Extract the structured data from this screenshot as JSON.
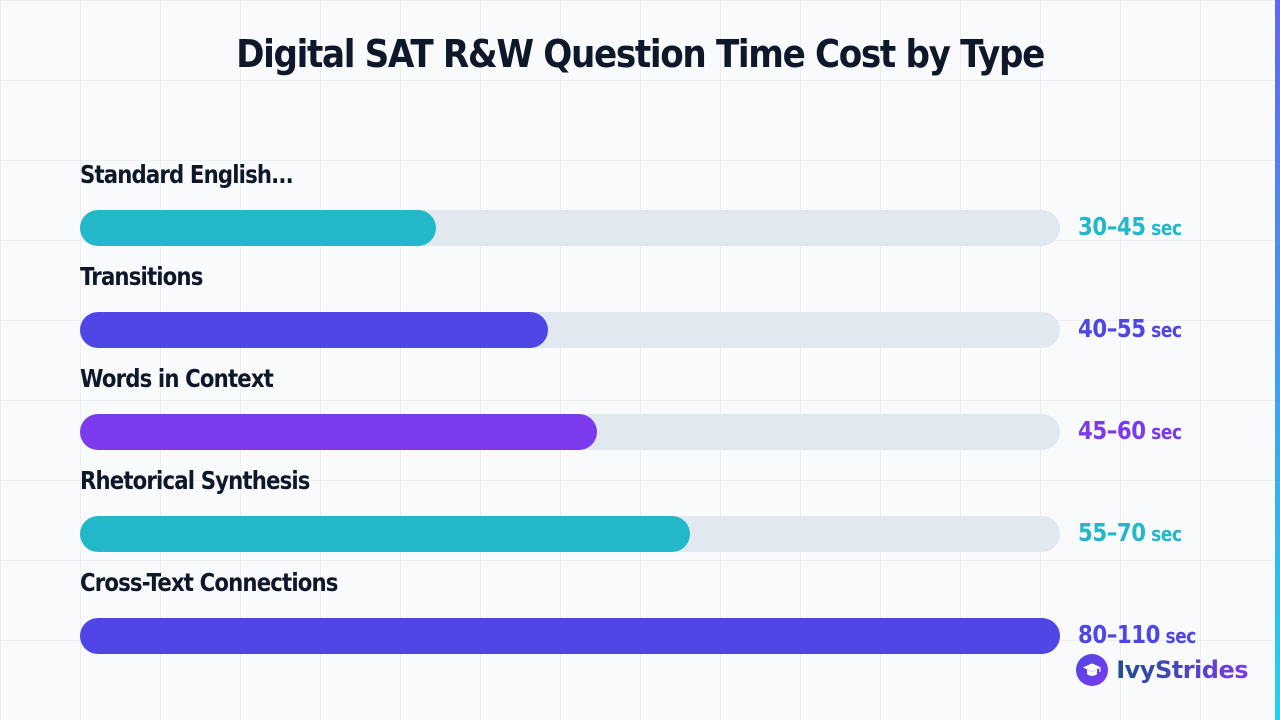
{
  "chart_data": {
    "type": "bar",
    "orientation": "horizontal",
    "title": "Digital SAT R&W Question Time Cost by Type",
    "categories": [
      "Standard English...",
      "Transitions",
      "Words in Context",
      "Rhetorical Synthesis",
      "Cross-Text Connections"
    ],
    "values": [
      40,
      52.5,
      58,
      68.5,
      110
    ],
    "xlim": [
      0,
      110
    ],
    "value_labels": [
      {
        "range": "30–45",
        "unit": "sec"
      },
      {
        "range": "40–55",
        "unit": "sec"
      },
      {
        "range": "45–60",
        "unit": "sec"
      },
      {
        "range": "55–70",
        "unit": "sec"
      },
      {
        "range": "80–110",
        "unit": "sec"
      }
    ],
    "colors": [
      "#22b8c9",
      "#4f46e5",
      "#7c3aed",
      "#22b8c9",
      "#4f46e5"
    ],
    "track_color": "#e2e8f0",
    "grid": false,
    "legend": "none"
  },
  "brand": {
    "name": "IvyStrides",
    "icon": "graduation-cap-icon"
  }
}
